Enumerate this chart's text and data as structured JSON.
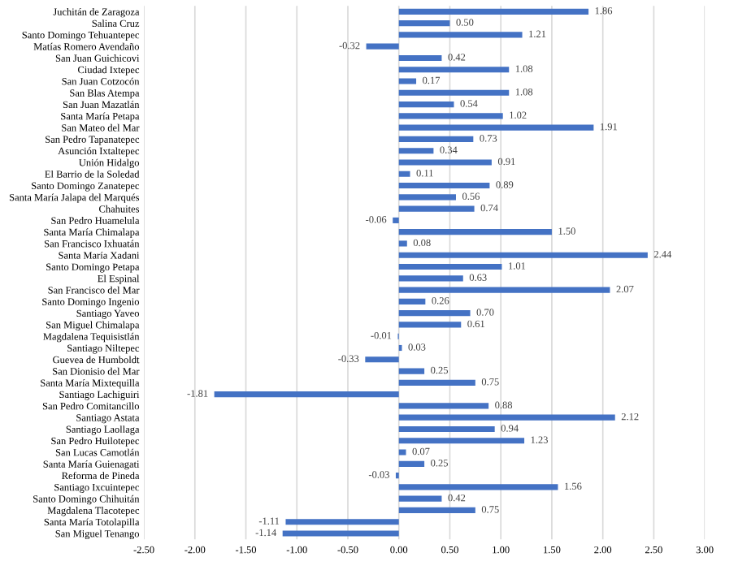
{
  "chart_data": {
    "type": "bar",
    "orientation": "horizontal",
    "color": "#4472c4",
    "categories": [
      "Juchitán de Zaragoza",
      "Salina Cruz",
      "Santo Domingo Tehuantepec",
      "Matías Romero Avendaño",
      "San Juan Guichicovi",
      "Ciudad Ixtepec",
      "San Juan Cotzocón",
      "San Blas Atempa",
      "San Juan Mazatlán",
      "Santa María Petapa",
      "San Mateo del Mar",
      "San Pedro Tapanatepec",
      "Asunción Ixtaltepec",
      "Unión Hidalgo",
      "El Barrio de la Soledad",
      "Santo Domingo Zanatepec",
      "Santa María Jalapa del Marqués",
      "Chahuites",
      "San Pedro Huamelula",
      "Santa María Chimalapa",
      "San Francisco Ixhuatán",
      "Santa María Xadani",
      "Santo Domingo Petapa",
      "El Espinal",
      "San Francisco del Mar",
      "Santo Domingo Ingenio",
      "Santiago Yaveo",
      "San Miguel Chimalapa",
      "Magdalena Tequisistlán",
      "Santiago Niltepec",
      "Guevea de Humboldt",
      "San Dionisio del Mar",
      "Santa María Mixtequilla",
      "Santiago Lachiguiri",
      "San Pedro Comitancillo",
      "Santiago Astata",
      "Santiago Laollaga",
      "San Pedro Huilotepec",
      "San Lucas Camotlán",
      "Santa María Guienagati",
      "Reforma de Pineda",
      "Santiago Ixcuintepec",
      "Santo Domingo Chihuitán",
      "Magdalena Tlacotepec",
      "Santa María Totolapilla",
      "San Miguel Tenango"
    ],
    "values": [
      1.86,
      0.5,
      1.21,
      -0.32,
      0.42,
      1.08,
      0.17,
      1.08,
      0.54,
      1.02,
      1.91,
      0.73,
      0.34,
      0.91,
      0.11,
      0.89,
      0.56,
      0.74,
      -0.06,
      1.5,
      0.08,
      2.44,
      1.01,
      0.63,
      2.07,
      0.26,
      0.7,
      0.61,
      -0.01,
      0.03,
      -0.33,
      0.25,
      0.75,
      -1.81,
      0.88,
      2.12,
      0.94,
      1.23,
      0.07,
      0.25,
      -0.03,
      1.56,
      0.42,
      0.75,
      -1.11,
      -1.14
    ],
    "value_labels": [
      "1.86",
      "0.50",
      "1.21",
      "-0.32",
      "0.42",
      "1.08",
      "0.17",
      "1.08",
      "0.54",
      "1.02",
      "1.91",
      "0.73",
      "0.34",
      "0.91",
      "0.11",
      "0.89",
      "0.56",
      "0.74",
      "-0.06",
      "1.50",
      "0.08",
      "2.44",
      "1.01",
      "0.63",
      "2.07",
      "0.26",
      "0.70",
      "0.61",
      "-0.01",
      "0.03",
      "-0.33",
      "0.25",
      "0.75",
      "-1.81",
      "0.88",
      "2.12",
      "0.94",
      "1.23",
      "0.07",
      "0.25",
      "-0.03",
      "1.56",
      "0.42",
      "0.75",
      "-1.11",
      "-1.14"
    ],
    "xlim": [
      -2.5,
      3.0
    ],
    "xticks": [
      {
        "value": -2.5,
        "label": "-2.50"
      },
      {
        "value": -2.0,
        "label": "-2.00"
      },
      {
        "value": -1.5,
        "label": "-1.50"
      },
      {
        "value": -1.0,
        "label": "-1.00"
      },
      {
        "value": -0.5,
        "label": "-0.50"
      },
      {
        "value": 0,
        "label": "0.00"
      },
      {
        "value": 0.5,
        "label": "0.50"
      },
      {
        "value": 1.0,
        "label": "1.00"
      },
      {
        "value": 1.5,
        "label": "1.50"
      },
      {
        "value": 2.0,
        "label": "2.00"
      },
      {
        "value": 2.5,
        "label": "2.50"
      },
      {
        "value": 3.0,
        "label": "3.00"
      }
    ],
    "grid": "x"
  }
}
